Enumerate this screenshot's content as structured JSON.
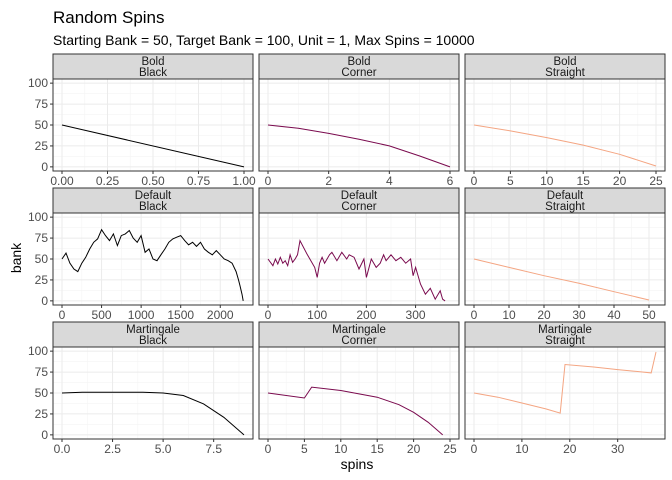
{
  "title": "Random Spins",
  "subtitle": "Starting Bank = 50, Target Bank = 100, Unit = 1, Max Spins = 10000",
  "xlabel": "spins",
  "ylabel": "bank",
  "y_ticks": [
    0,
    25,
    50,
    75,
    100
  ],
  "y_tick_labels": [
    "0",
    "25",
    "50",
    "75",
    "100"
  ],
  "colors": {
    "Black": "#000000",
    "Corner": "#7a0a4e",
    "Straight": "#f4a582"
  },
  "chart_data": {
    "type": "line",
    "facet_rows": [
      "Bold",
      "Default",
      "Martingale"
    ],
    "facet_cols": [
      "Black",
      "Corner",
      "Straight"
    ],
    "ylim": [
      0,
      100
    ],
    "panels": [
      {
        "strategy": "Bold",
        "bet": "Black",
        "xlim": [
          0,
          1
        ],
        "x_ticks": [
          0,
          0.25,
          0.5,
          0.75,
          1
        ],
        "x_tick_labels": [
          "0.00",
          "0.25",
          "0.50",
          "0.75",
          "1.00"
        ],
        "x": [
          0,
          1
        ],
        "y": [
          50,
          0
        ]
      },
      {
        "strategy": "Bold",
        "bet": "Corner",
        "xlim": [
          0,
          6
        ],
        "x_ticks": [
          0,
          2,
          4,
          6
        ],
        "x_tick_labels": [
          "0",
          "2",
          "4",
          "6"
        ],
        "x": [
          0,
          1,
          2,
          3,
          4,
          5,
          6
        ],
        "y": [
          50,
          46,
          40,
          33,
          25,
          13,
          0
        ]
      },
      {
        "strategy": "Bold",
        "bet": "Straight",
        "xlim": [
          0,
          25
        ],
        "x_ticks": [
          0,
          5,
          10,
          15,
          20,
          25
        ],
        "x_tick_labels": [
          "0",
          "5",
          "10",
          "15",
          "20",
          "25"
        ],
        "x": [
          0,
          5,
          10,
          15,
          20,
          25
        ],
        "y": [
          50,
          43,
          35,
          26,
          15,
          1
        ]
      },
      {
        "strategy": "Default",
        "bet": "Black",
        "xlim": [
          0,
          2300
        ],
        "x_ticks": [
          0,
          500,
          1000,
          1500,
          2000
        ],
        "x_tick_labels": [
          "0",
          "500",
          "1000",
          "1500",
          "2000"
        ],
        "x": [
          0,
          50,
          100,
          150,
          200,
          250,
          300,
          350,
          400,
          450,
          500,
          550,
          600,
          650,
          700,
          750,
          800,
          850,
          900,
          950,
          1000,
          1050,
          1100,
          1150,
          1200,
          1250,
          1300,
          1350,
          1400,
          1450,
          1500,
          1550,
          1600,
          1650,
          1700,
          1750,
          1800,
          1850,
          1900,
          1950,
          2000,
          2050,
          2100,
          2150,
          2200,
          2230,
          2250,
          2275,
          2290
        ],
        "y": [
          50,
          57,
          45,
          38,
          35,
          45,
          52,
          62,
          70,
          74,
          85,
          78,
          72,
          80,
          66,
          78,
          80,
          84,
          75,
          70,
          78,
          58,
          62,
          50,
          48,
          55,
          62,
          70,
          74,
          76,
          78,
          72,
          67,
          70,
          65,
          70,
          62,
          58,
          55,
          60,
          55,
          50,
          48,
          45,
          35,
          25,
          18,
          8,
          0
        ]
      },
      {
        "strategy": "Default",
        "bet": "Corner",
        "xlim": [
          0,
          370
        ],
        "x_ticks": [
          0,
          100,
          200,
          300
        ],
        "x_tick_labels": [
          "0",
          "100",
          "200",
          "300"
        ],
        "x": [
          0,
          10,
          15,
          20,
          25,
          30,
          35,
          40,
          45,
          50,
          55,
          60,
          65,
          80,
          95,
          100,
          105,
          110,
          115,
          125,
          130,
          140,
          150,
          160,
          165,
          175,
          185,
          195,
          200,
          210,
          220,
          228,
          235,
          240,
          250,
          260,
          270,
          280,
          290,
          295,
          300,
          310,
          320,
          330,
          340,
          350,
          355,
          360
        ],
        "y": [
          50,
          42,
          50,
          44,
          52,
          45,
          48,
          42,
          55,
          46,
          50,
          55,
          72,
          55,
          40,
          28,
          45,
          52,
          45,
          55,
          58,
          48,
          58,
          50,
          55,
          52,
          38,
          50,
          28,
          50,
          40,
          45,
          55,
          48,
          55,
          48,
          52,
          45,
          50,
          30,
          40,
          20,
          8,
          15,
          2,
          12,
          2,
          0
        ]
      },
      {
        "strategy": "Default",
        "bet": "Straight",
        "xlim": [
          0,
          52
        ],
        "x_ticks": [
          0,
          10,
          20,
          30,
          40,
          50
        ],
        "x_tick_labels": [
          "0",
          "10",
          "20",
          "30",
          "40",
          "50"
        ],
        "x": [
          0,
          10,
          20,
          30,
          40,
          50
        ],
        "y": [
          50,
          40,
          30,
          21,
          11,
          1
        ]
      },
      {
        "strategy": "Martingale",
        "bet": "Black",
        "xlim": [
          0,
          9
        ],
        "x_ticks": [
          0,
          2.5,
          5,
          7.5
        ],
        "x_tick_labels": [
          "0.0",
          "2.5",
          "5.0",
          "7.5"
        ],
        "x": [
          0,
          1,
          2,
          3,
          4,
          5,
          6,
          7,
          8,
          9
        ],
        "y": [
          50,
          51,
          51,
          51,
          51,
          50,
          47,
          37,
          21,
          0
        ]
      },
      {
        "strategy": "Martingale",
        "bet": "Corner",
        "xlim": [
          0,
          25
        ],
        "x_ticks": [
          0,
          5,
          10,
          15,
          20,
          25
        ],
        "x_tick_labels": [
          "0",
          "5",
          "10",
          "15",
          "20",
          "25"
        ],
        "x": [
          0,
          5,
          6,
          10,
          15,
          18,
          20,
          22,
          24
        ],
        "y": [
          50,
          44,
          57,
          53,
          45,
          36,
          27,
          15,
          0
        ]
      },
      {
        "strategy": "Martingale",
        "bet": "Straight",
        "xlim": [
          0,
          38
        ],
        "x_ticks": [
          0,
          10,
          20,
          30
        ],
        "x_tick_labels": [
          "0",
          "10",
          "20",
          "30"
        ],
        "x": [
          0,
          5,
          10,
          15,
          18,
          19,
          25,
          30,
          37,
          38
        ],
        "y": [
          50,
          45,
          38,
          31,
          26,
          84,
          81,
          78,
          74,
          99
        ]
      }
    ]
  }
}
